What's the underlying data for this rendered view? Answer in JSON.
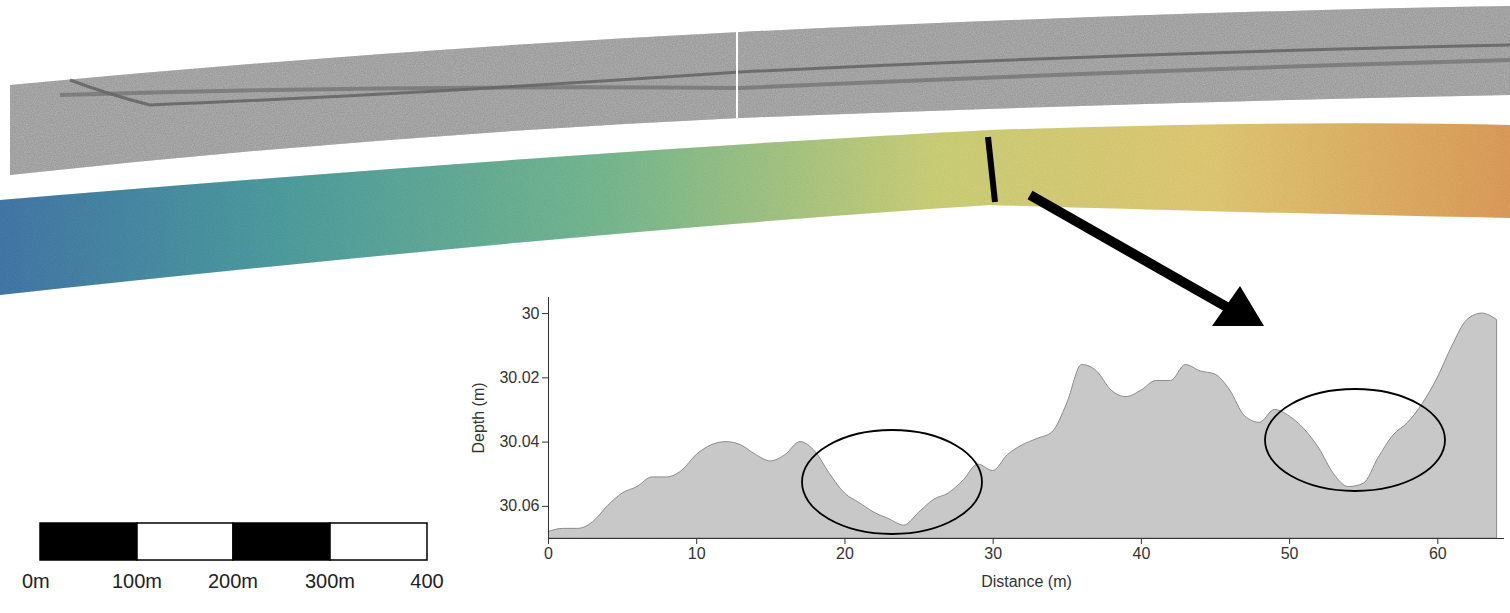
{
  "chart_data": {
    "type": "area",
    "xlabel": "Distance (m)",
    "ylabel": "Depth (m)",
    "x": [
      0,
      1,
      2,
      3,
      4,
      5,
      6,
      7,
      8,
      9,
      10,
      11,
      12,
      13,
      14,
      15,
      16,
      17,
      18,
      19,
      20,
      21,
      22,
      23,
      24,
      25,
      26,
      27,
      28,
      29,
      30,
      31,
      32,
      33,
      34,
      35,
      36,
      37,
      38,
      39,
      40,
      41,
      42,
      43,
      44,
      45,
      46,
      47,
      48,
      49,
      50,
      51,
      52,
      53,
      54,
      55,
      56,
      57,
      58,
      59,
      60,
      61,
      62,
      63,
      64
    ],
    "values": [
      30.068,
      30.067,
      30.067,
      30.065,
      30.06,
      30.056,
      30.054,
      30.051,
      30.051,
      30.049,
      30.044,
      30.041,
      30.04,
      30.041,
      30.044,
      30.046,
      30.044,
      30.04,
      30.043,
      30.05,
      30.056,
      30.059,
      30.062,
      30.064,
      30.066,
      30.062,
      30.058,
      30.056,
      30.052,
      30.047,
      30.049,
      30.044,
      30.041,
      30.039,
      30.037,
      30.028,
      30.016,
      30.018,
      30.024,
      30.026,
      30.024,
      30.021,
      30.021,
      30.016,
      30.018,
      30.019,
      30.024,
      30.032,
      30.034,
      30.03,
      30.032,
      30.036,
      30.042,
      30.05,
      30.054,
      30.053,
      30.045,
      30.038,
      30.034,
      30.028,
      30.02,
      30.01,
      30.002,
      30.0,
      30.002
    ],
    "color": "#c8c8c8",
    "xlim": [
      0,
      64.5
    ],
    "xticks": [
      0,
      10,
      20,
      30,
      40,
      50,
      60
    ],
    "ylim": [
      30.07,
      29.995
    ],
    "yticks": [
      30,
      30.02,
      30.04,
      30.06
    ]
  },
  "scale_bar": {
    "labels": [
      "0m",
      "100m",
      "200m",
      "300m",
      "400"
    ]
  }
}
